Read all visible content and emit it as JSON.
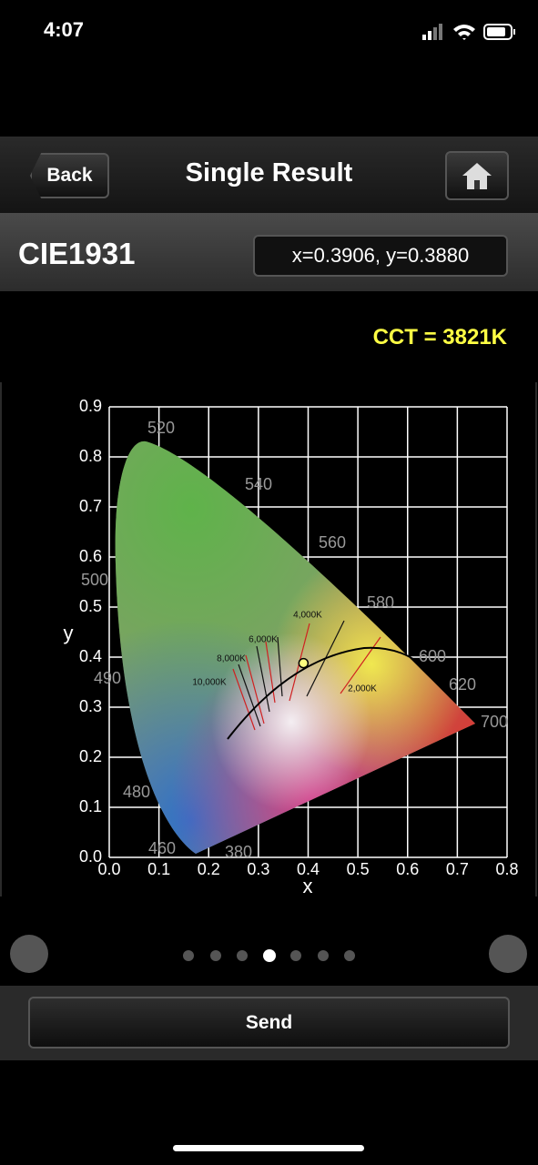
{
  "status_bar": {
    "time": "4:07"
  },
  "nav": {
    "back": "Back",
    "title": "Single Result"
  },
  "subheader": {
    "title": "CIE1931",
    "coordinates": "x=0.3906, y=0.3880"
  },
  "cct": "CCT = 3821K",
  "chart_data": {
    "type": "scatter",
    "x_label": "x",
    "y_label": "y",
    "xlim": [
      0,
      0.8
    ],
    "ylim": [
      0,
      0.9
    ],
    "xticks": [
      {
        "value": 0,
        "label": "0.0"
      },
      0.1,
      0.2,
      0.3,
      0.4,
      0.5,
      0.6,
      0.7,
      0.8
    ],
    "yticks": [
      {
        "value": 0,
        "label": "0.0"
      },
      0.1,
      0.2,
      0.3,
      0.4,
      0.5,
      0.6,
      0.7,
      0.8,
      0.9
    ],
    "x": [
      0.3906
    ],
    "values": [
      0.388
    ],
    "color": "#ffff80",
    "grid": true,
    "wavelength_labels": [
      "520",
      "540",
      "560",
      "580",
      "600",
      "620",
      "700",
      "500",
      "490",
      "480",
      "460",
      "380"
    ],
    "cct_labels": [
      "10,000K",
      "8,000K",
      "6,000K",
      "4,000K",
      "2,000K"
    ]
  },
  "send": "Send"
}
